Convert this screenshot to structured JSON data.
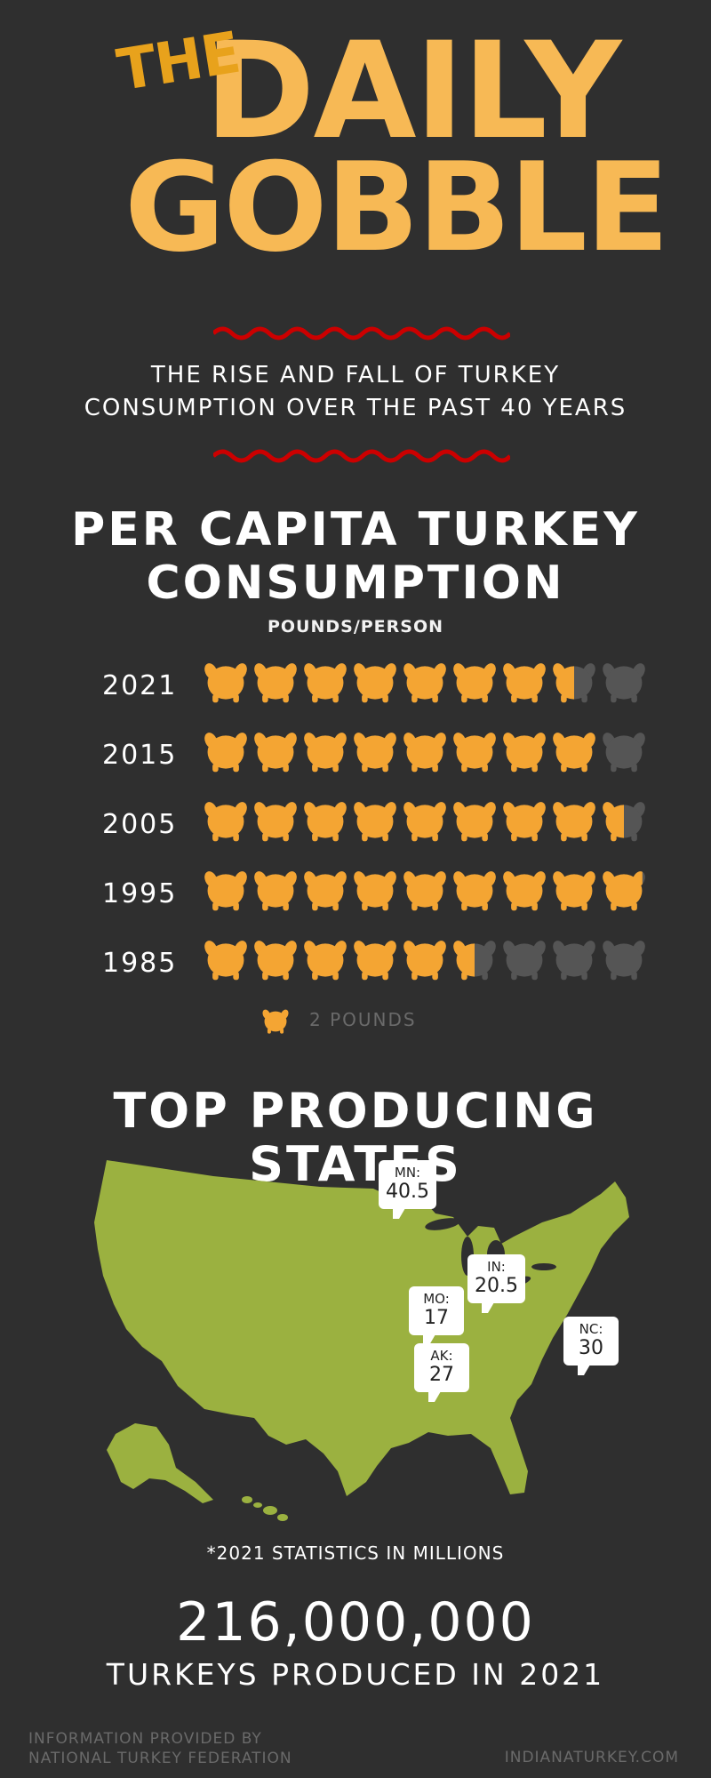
{
  "masthead": {
    "the": "THE",
    "daily": "DAILY",
    "gobble": "GOBBLE"
  },
  "subtitle": {
    "line1": "THE RISE AND FALL OF TURKEY",
    "line2": "CONSUMPTION OVER THE PAST 40 YEARS"
  },
  "per_capita": {
    "title_line1": "PER CAPITA TURKEY",
    "title_line2": "CONSUMPTION",
    "units": "POUNDS/PERSON",
    "legend_label": "2 POUNDS"
  },
  "chart_data": {
    "type": "pictograph",
    "title": "PER CAPITA TURKEY CONSUMPTION",
    "ylabel": "POUNDS/PERSON",
    "icon": "turkey-icon",
    "icon_value_pounds": 2,
    "icons_per_row": 9,
    "categories": [
      "2021",
      "2015",
      "2005",
      "1995",
      "1985"
    ],
    "filled_icons": [
      7.5,
      8,
      8.5,
      8.9,
      5.5
    ],
    "colors": {
      "filled": "#f4a533",
      "empty": "#555555"
    }
  },
  "states": {
    "title": "TOP PRODUCING STATES",
    "note": "*2021 STATISTICS IN MILLIONS",
    "callouts": [
      {
        "state": "MN:",
        "value": "40.5"
      },
      {
        "state": "IN:",
        "value": "20.5"
      },
      {
        "state": "MO:",
        "value": "17"
      },
      {
        "state": "NC:",
        "value": "30"
      },
      {
        "state": "AK:",
        "value": "27"
      }
    ]
  },
  "total": {
    "number": "216,000,000",
    "caption": "TURKEYS PRODUCED IN 2021"
  },
  "footer": {
    "source_line1": "INFORMATION PROVIDED BY",
    "source_line2": "NATIONAL TURKEY FEDERATION",
    "site": "INDIANATURKEY.COM"
  },
  "colors": {
    "background": "#2f2f2f",
    "masthead": "#f7b955",
    "the": "#e8a21c",
    "wave": "#cc0000",
    "map": "#9bb140"
  }
}
